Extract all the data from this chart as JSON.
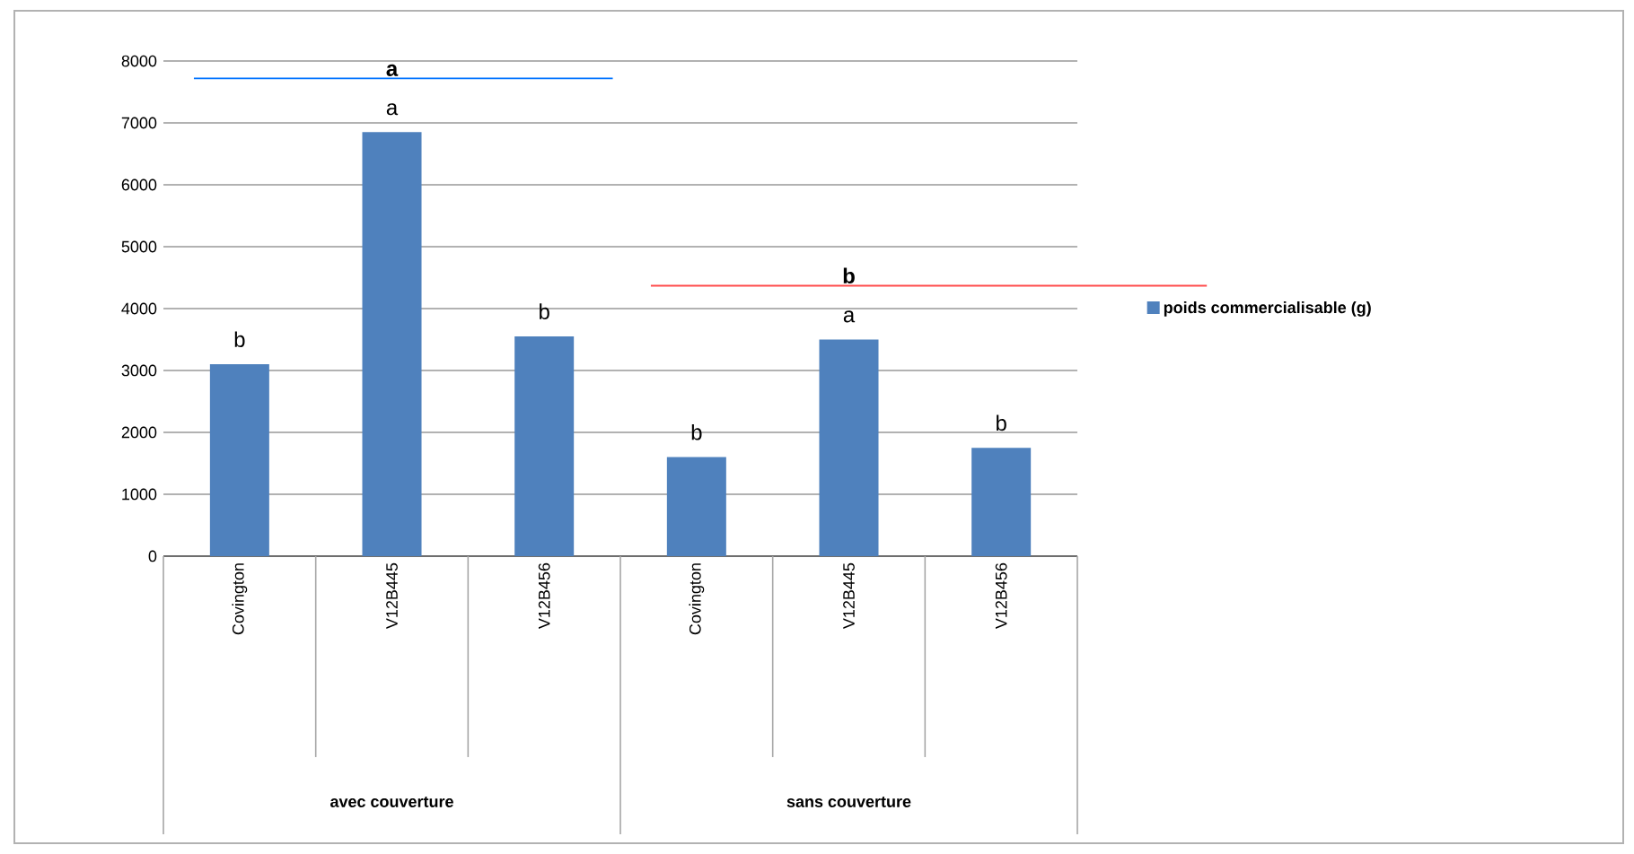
{
  "chart_data": {
    "type": "bar",
    "categories": [
      "Covington",
      "V12B445",
      "V12B456",
      "Covington",
      "V12B445",
      "V12B456"
    ],
    "series": [
      {
        "name": "poids commercialisable (g)",
        "color": "#4f81bd",
        "values": [
          3100,
          6850,
          3550,
          1600,
          3500,
          1750
        ]
      }
    ],
    "ylim": [
      0,
      8000
    ],
    "yticks": [
      0,
      1000,
      2000,
      3000,
      4000,
      5000,
      6000,
      7000,
      8000
    ],
    "grid": "y",
    "legend": "right",
    "annotations": [
      "b",
      "a",
      "b",
      "b",
      "a",
      "b",
      "a",
      "b",
      "avec couverture",
      "sans couverture"
    ]
  }
}
